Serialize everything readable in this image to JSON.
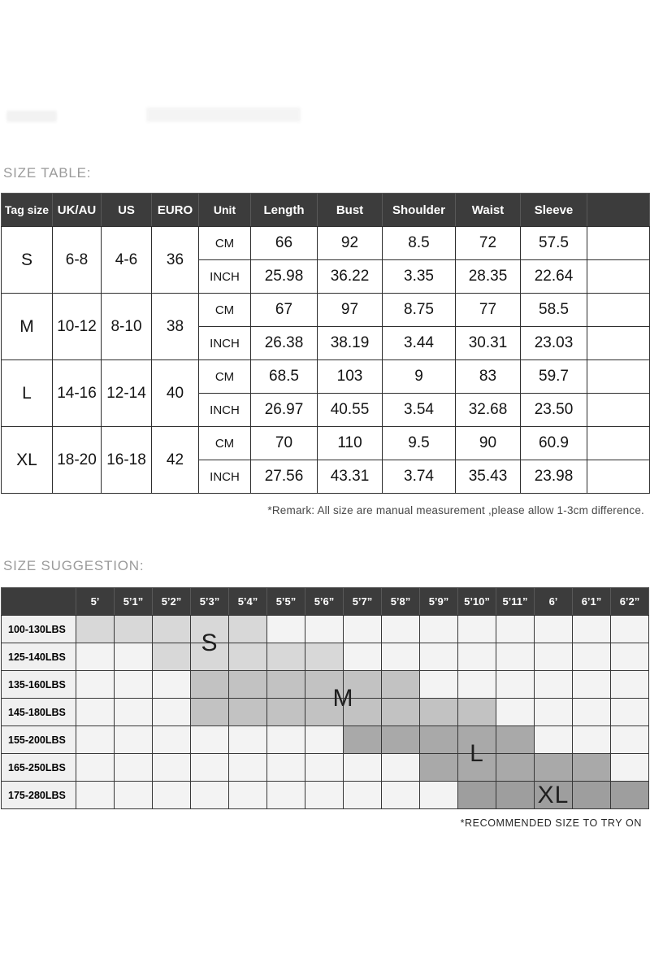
{
  "headings": {
    "size_table": "SIZE TABLE:",
    "size_suggestion": "SIZE SUGGESTION:"
  },
  "notes": {
    "remark": "*Remark: All size are manual measurement ,please allow 1-3cm difference.",
    "recommended": "*RECOMMENDED SIZE TO TRY ON"
  },
  "size_table": {
    "headers": [
      "Tag size",
      "UK/AU",
      "US",
      "EURO",
      "Unit",
      "Length",
      "Bust",
      "Shoulder",
      "Waist",
      "Sleeve",
      ""
    ],
    "unit_labels": [
      "CM",
      "INCH"
    ],
    "rows": [
      {
        "tag": "S",
        "uk_au": "6-8",
        "us": "4-6",
        "euro": "36",
        "cm": [
          "66",
          "92",
          "8.5",
          "72",
          "57.5"
        ],
        "inch": [
          "25.98",
          "36.22",
          "3.35",
          "28.35",
          "22.64"
        ]
      },
      {
        "tag": "M",
        "uk_au": "10-12",
        "us": "8-10",
        "euro": "38",
        "cm": [
          "67",
          "97",
          "8.75",
          "77",
          "58.5"
        ],
        "inch": [
          "26.38",
          "38.19",
          "3.44",
          "30.31",
          "23.03"
        ]
      },
      {
        "tag": "L",
        "uk_au": "14-16",
        "us": "12-14",
        "euro": "40",
        "cm": [
          "68.5",
          "103",
          "9",
          "83",
          "59.7"
        ],
        "inch": [
          "26.97",
          "40.55",
          "3.54",
          "32.68",
          "23.50"
        ]
      },
      {
        "tag": "XL",
        "uk_au": "18-20",
        "us": "16-18",
        "euro": "42",
        "cm": [
          "70",
          "110",
          "9.5",
          "90",
          "60.9"
        ],
        "inch": [
          "27.56",
          "43.31",
          "3.74",
          "35.43",
          "23.98"
        ]
      }
    ]
  },
  "suggestion_table": {
    "height_headers": [
      "5’",
      "5’1”",
      "5’2”",
      "5’3”",
      "5’4”",
      "5’5”",
      "5’6”",
      "5’7”",
      "5’8”",
      "5’9”",
      "5’10”",
      "5’11”",
      "6’",
      "6’1”",
      "6’2”"
    ],
    "weight_labels": [
      "100-130LBS",
      "125-140LBS",
      "135-160LBS",
      "145-180LBS",
      "155-200LBS",
      "165-250LBS",
      "175-280LBS"
    ],
    "shade_colors": {
      "s": "#d8d8d8",
      "m": "#c2c2c2",
      "l": "#a9a9a9",
      "xl": "#9e9e9e"
    },
    "shading": [
      {
        "row": 0,
        "from": 1,
        "to": 5,
        "shade": "s"
      },
      {
        "row": 1,
        "from": 3,
        "to": 7,
        "shade": "s"
      },
      {
        "row": 2,
        "from": 4,
        "to": 9,
        "shade": "m"
      },
      {
        "row": 3,
        "from": 4,
        "to": 11,
        "shade": "m"
      },
      {
        "row": 4,
        "from": 8,
        "to": 12,
        "shade": "l"
      },
      {
        "row": 5,
        "from": 10,
        "to": 14,
        "shade": "l"
      },
      {
        "row": 6,
        "from": 11,
        "to": 15,
        "shade": "xl"
      }
    ],
    "size_letters": [
      {
        "label": "S",
        "row": 1.0,
        "col": 3.5
      },
      {
        "label": "M",
        "row": 3.0,
        "col": 7.0
      },
      {
        "label": "L",
        "row": 5.0,
        "col": 10.5
      },
      {
        "label": "XL",
        "row": 6.5,
        "col": 12.5
      }
    ]
  }
}
